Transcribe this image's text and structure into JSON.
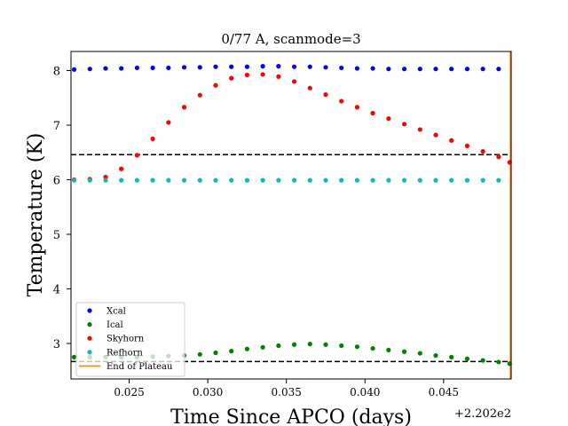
{
  "chart_data": {
    "type": "scatter",
    "title": "0/77 A, scanmode=3",
    "xlabel": "Time Since APCO (days)",
    "ylabel": "Temperature (K)",
    "x_offset_label": "+2.202e2",
    "xlim": [
      0.0213,
      0.0493
    ],
    "ylim": [
      2.35,
      8.35
    ],
    "x_ticks": [
      0.025,
      0.03,
      0.035,
      0.04,
      0.045
    ],
    "x_tick_labels": [
      "0.025",
      "0.030",
      "0.035",
      "0.040",
      "0.045"
    ],
    "y_ticks": [
      3,
      4,
      5,
      6,
      7,
      8
    ],
    "y_tick_labels": [
      "3",
      "4",
      "5",
      "6",
      "7",
      "8"
    ],
    "grid": false,
    "legend_position": "bottom-left",
    "series": [
      {
        "name": "Xcal",
        "color": "#0000ff",
        "x": [
          0.0215,
          0.0225,
          0.0235,
          0.0245,
          0.0255,
          0.0265,
          0.0275,
          0.0285,
          0.0295,
          0.0305,
          0.0315,
          0.0325,
          0.0335,
          0.0345,
          0.0355,
          0.0365,
          0.0375,
          0.0385,
          0.0395,
          0.0405,
          0.0415,
          0.0425,
          0.0435,
          0.0445,
          0.0455,
          0.0465,
          0.0475,
          0.0485
        ],
        "y": [
          8.02,
          8.03,
          8.04,
          8.04,
          8.05,
          8.05,
          8.05,
          8.06,
          8.06,
          8.07,
          8.07,
          8.07,
          8.08,
          8.08,
          8.07,
          8.07,
          8.06,
          8.05,
          8.04,
          8.04,
          8.03,
          8.03,
          8.03,
          8.03,
          8.03,
          8.03,
          8.03,
          8.03
        ]
      },
      {
        "name": "Ical",
        "color": "#008000",
        "x": [
          0.0215,
          0.0225,
          0.0235,
          0.0245,
          0.0255,
          0.0265,
          0.0275,
          0.0285,
          0.0295,
          0.0305,
          0.0315,
          0.0325,
          0.0335,
          0.0345,
          0.0355,
          0.0365,
          0.0375,
          0.0385,
          0.0395,
          0.0405,
          0.0415,
          0.0425,
          0.0435,
          0.0445,
          0.0455,
          0.0465,
          0.0475,
          0.0485,
          0.0492
        ],
        "y": [
          2.75,
          2.75,
          2.75,
          2.75,
          2.75,
          2.76,
          2.77,
          2.78,
          2.8,
          2.83,
          2.86,
          2.9,
          2.93,
          2.96,
          2.98,
          2.99,
          2.98,
          2.96,
          2.94,
          2.91,
          2.88,
          2.85,
          2.82,
          2.78,
          2.75,
          2.72,
          2.69,
          2.66,
          2.63
        ]
      },
      {
        "name": "Skyhorn",
        "color": "#ff0000",
        "x": [
          0.0215,
          0.0225,
          0.0235,
          0.0245,
          0.0255,
          0.0265,
          0.0275,
          0.0285,
          0.0295,
          0.0305,
          0.0315,
          0.0325,
          0.0335,
          0.0345,
          0.0355,
          0.0365,
          0.0375,
          0.0385,
          0.0395,
          0.0405,
          0.0415,
          0.0425,
          0.0435,
          0.0445,
          0.0455,
          0.0465,
          0.0475,
          0.0485,
          0.0492
        ],
        "y": [
          6.0,
          6.01,
          6.05,
          6.2,
          6.45,
          6.75,
          7.05,
          7.33,
          7.55,
          7.73,
          7.86,
          7.92,
          7.93,
          7.89,
          7.8,
          7.68,
          7.56,
          7.44,
          7.33,
          7.22,
          7.12,
          7.02,
          6.92,
          6.82,
          6.72,
          6.62,
          6.52,
          6.42,
          6.32
        ]
      },
      {
        "name": "Refhorn",
        "color": "#00bfbf",
        "x": [
          0.0215,
          0.0225,
          0.0235,
          0.0245,
          0.0255,
          0.0265,
          0.0275,
          0.0285,
          0.0295,
          0.0305,
          0.0315,
          0.0325,
          0.0335,
          0.0345,
          0.0355,
          0.0365,
          0.0375,
          0.0385,
          0.0395,
          0.0405,
          0.0415,
          0.0425,
          0.0435,
          0.0445,
          0.0455,
          0.0465,
          0.0475,
          0.0485
        ],
        "y": [
          5.99,
          5.99,
          5.99,
          5.99,
          5.99,
          5.99,
          5.99,
          5.99,
          5.99,
          5.99,
          5.99,
          5.99,
          5.99,
          5.99,
          5.99,
          5.99,
          5.99,
          5.99,
          5.99,
          5.99,
          5.99,
          5.99,
          5.99,
          5.99,
          5.99,
          5.99,
          5.99,
          5.99
        ]
      }
    ],
    "hlines": [
      {
        "y": 6.46,
        "color": "#000000",
        "style": "dashed"
      },
      {
        "y": 2.67,
        "color": "#000000",
        "style": "dashed"
      }
    ],
    "vlines": [
      {
        "name": "End of Plateau",
        "x": 0.04925,
        "color": "#ff7f0e"
      }
    ]
  }
}
